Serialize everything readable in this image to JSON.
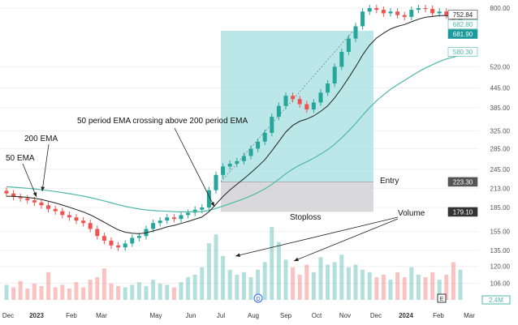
{
  "chart_data": {
    "type": "candlestick",
    "y_scale": "log",
    "ylim": [
      100,
      830
    ],
    "y_ticks": [
      "800.00",
      "520.00",
      "445.00",
      "385.00",
      "325.00",
      "285.00",
      "245.00",
      "213.00",
      "185.00",
      "155.00",
      "135.00",
      "120.00",
      "106.00"
    ],
    "x_ticks": [
      "Dec",
      "2023",
      "Feb",
      "Mar",
      "May",
      "Jun",
      "Jul",
      "Aug",
      "Sep",
      "Oct",
      "Nov",
      "Dec",
      "2024",
      "Feb",
      "Mar"
    ],
    "start": "2022-12-01",
    "interval": "week",
    "closes": [
      205,
      200,
      198,
      195,
      192,
      188,
      183,
      180,
      175,
      172,
      168,
      165,
      158,
      150,
      145,
      140,
      138,
      142,
      148,
      150,
      158,
      165,
      168,
      172,
      170,
      175,
      178,
      182,
      185,
      210,
      235,
      250,
      255,
      260,
      270,
      285,
      300,
      320,
      360,
      390,
      420,
      410,
      395,
      380,
      400,
      430,
      460,
      520,
      580,
      640,
      700,
      780,
      800,
      790,
      770,
      780,
      760,
      750,
      790,
      800,
      795,
      770,
      780,
      760,
      690,
      752
    ],
    "volume_millions": [
      1.2,
      1.0,
      1.5,
      0.9,
      1.3,
      1.1,
      2.2,
      1.0,
      1.2,
      0.9,
      1.4,
      1.0,
      1.6,
      1.8,
      2.5,
      1.3,
      1.1,
      1.0,
      1.2,
      1.4,
      1.1,
      1.6,
      1.3,
      1.2,
      1.0,
      1.4,
      1.8,
      2.0,
      2.6,
      4.5,
      5.2,
      3.5,
      2.4,
      2.0,
      2.2,
      1.8,
      2.4,
      3.0,
      5.8,
      4.6,
      3.2,
      2.6,
      2.0,
      2.8,
      2.2,
      3.4,
      2.8,
      3.0,
      3.6,
      2.6,
      2.8,
      2.4,
      2.2,
      1.8,
      2.0,
      1.6,
      2.2,
      1.8,
      2.6,
      2.0,
      1.8,
      2.2,
      1.6,
      2.0,
      3.0,
      2.4
    ],
    "series": [
      {
        "name": "50 EMA"
      },
      {
        "name": "200 EMA"
      }
    ],
    "price_labels": {
      "last": "752.84",
      "ema50": "682.80",
      "close": "681.90",
      "ema200": "580.30",
      "entry": "223.30",
      "stoploss": "179.10",
      "volume": "2.4M"
    },
    "annotations": {
      "ema200": "200 EMA",
      "ema50": "50 EMA",
      "crossing": "50 period EMA crossing above 200 period EMA",
      "entry": "Entry",
      "stoploss": "Stoploss",
      "volume": "Volume"
    },
    "markers": {
      "dividend": "D",
      "earnings": "E"
    },
    "colors": {
      "up": "#26a69a",
      "down": "#ef5350",
      "ema50": "#222222",
      "ema200": "#4fb8a8",
      "profit": "#a6dfe0",
      "loss": "#d0d0d3"
    }
  }
}
